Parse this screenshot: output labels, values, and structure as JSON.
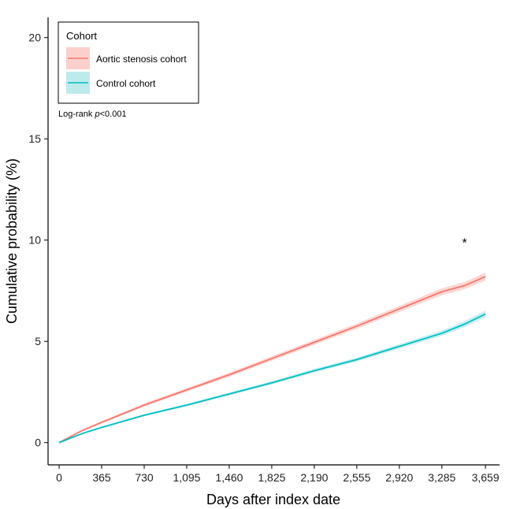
{
  "chart_data": {
    "type": "line",
    "title": "",
    "xlabel": "Days after index date",
    "ylabel": "Cumulative probability (%)",
    "xlim": [
      -95,
      3780
    ],
    "ylim": [
      -1.1,
      21
    ],
    "xticks": [
      0,
      365,
      730,
      1095,
      1460,
      1825,
      2190,
      2555,
      2920,
      3285,
      3659
    ],
    "xtick_labels": [
      "0",
      "365",
      "730",
      "1,095",
      "1,460",
      "1,825",
      "2,190",
      "2,555",
      "2,920",
      "3,285",
      "3,659"
    ],
    "yticks": [
      0,
      5,
      10,
      15,
      20
    ],
    "ytick_labels": [
      "0",
      "5",
      "10",
      "15",
      "20"
    ],
    "grid": false,
    "legend": {
      "title": "Cohort",
      "placement": "top-left"
    },
    "annotations": {
      "logrank_prefix": "Log-rank ",
      "logrank_p": "p",
      "logrank_value": "<0.001",
      "star": "*",
      "star_x": 3480,
      "star_y": 9.9
    },
    "series": [
      {
        "name": "Aortic stenosis cohort",
        "color": "#F8766D",
        "band_color": "#FBD0CC",
        "x": [
          0,
          200,
          365,
          730,
          1095,
          1460,
          1825,
          2190,
          2555,
          2920,
          3285,
          3480,
          3659
        ],
        "y": [
          0,
          0.6,
          1.0,
          1.85,
          2.6,
          3.35,
          4.15,
          4.95,
          5.75,
          6.6,
          7.45,
          7.75,
          8.2
        ],
        "ci": [
          0,
          0.04,
          0.06,
          0.08,
          0.09,
          0.1,
          0.11,
          0.12,
          0.13,
          0.15,
          0.17,
          0.18,
          0.2
        ]
      },
      {
        "name": "Control cohort",
        "color": "#00BFC4",
        "band_color": "#BDEBEC",
        "x": [
          0,
          200,
          365,
          730,
          1095,
          1460,
          1825,
          2190,
          2555,
          2920,
          3285,
          3480,
          3659
        ],
        "y": [
          0,
          0.45,
          0.75,
          1.35,
          1.85,
          2.4,
          2.95,
          3.55,
          4.1,
          4.75,
          5.4,
          5.85,
          6.35
        ],
        "ci": [
          0,
          0.03,
          0.04,
          0.05,
          0.06,
          0.07,
          0.08,
          0.09,
          0.1,
          0.11,
          0.13,
          0.15,
          0.17
        ]
      }
    ]
  }
}
